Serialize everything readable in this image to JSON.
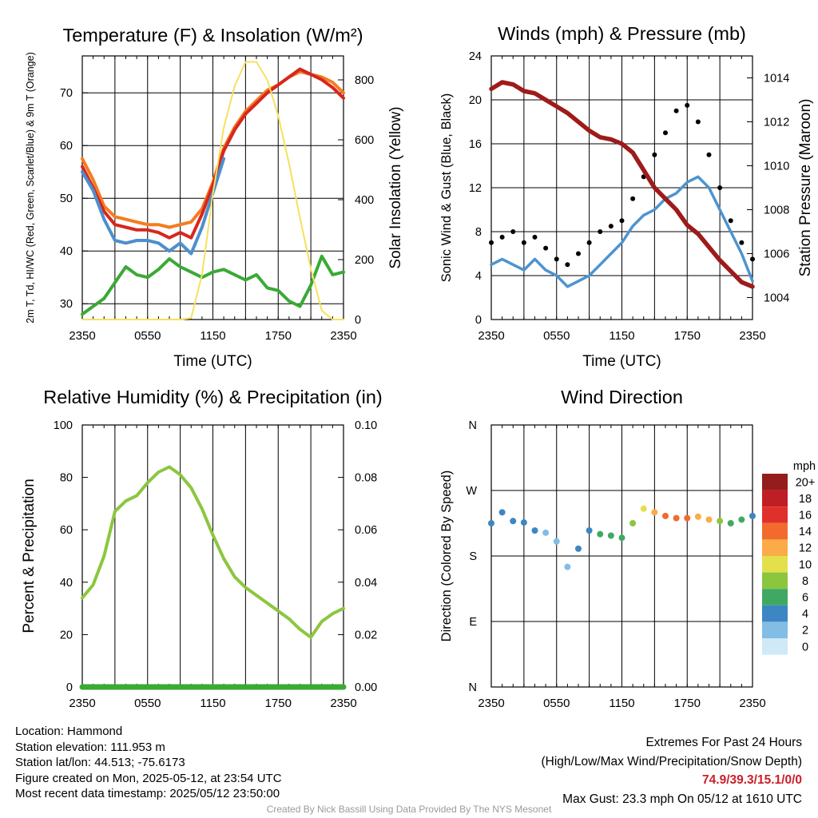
{
  "colors": {
    "temp": "#d7261e",
    "dewpoint": "#3aaa35",
    "hiwc": "#4d8fcc",
    "temp9m": "#f57c20",
    "insolation": "#f7e05e",
    "wind": "#4d94d0",
    "gust": "#000000",
    "pressure": "#9e1b1b",
    "rh": "#8cc63f",
    "precip": "#3aaa35"
  },
  "chart_data": [
    {
      "type": "line",
      "panel": "temperature",
      "title": "Temperature (F) & Insolation (W/m²)",
      "xlabel": "Time (UTC)",
      "ylabel": "2m T, Td, HI/WC (Red, Green, Scarlet/Blue) & 9m T (Orange)",
      "ylabel_right": "Solar Insolation (Yellow)",
      "x_ticks": [
        "2350",
        "0550",
        "1150",
        "1750",
        "2350"
      ],
      "y_ticks": [
        30,
        40,
        50,
        60,
        70
      ],
      "y_ticks_right": [
        0,
        200,
        400,
        600,
        800
      ],
      "ylim": [
        27,
        77
      ],
      "ylim_right": [
        0,
        880
      ],
      "x_hours": [
        0,
        1,
        2,
        3,
        4,
        5,
        6,
        7,
        8,
        9,
        10,
        11,
        12,
        13,
        14,
        15,
        16,
        17,
        18,
        19,
        20,
        21,
        22,
        23,
        24
      ],
      "series": [
        {
          "name": "9m T (Orange)",
          "axis": "left",
          "values": [
            57.5,
            53.5,
            48.5,
            46.5,
            46,
            45.5,
            45,
            45,
            44.5,
            45,
            45.5,
            48,
            53,
            59.5,
            63.5,
            66.5,
            68.5,
            70.5,
            71.5,
            73,
            74,
            73.5,
            73,
            72,
            70
          ]
        },
        {
          "name": "2m T (Red)",
          "axis": "left",
          "values": [
            56,
            52,
            47.5,
            45,
            44.5,
            44,
            44,
            43.5,
            42.5,
            43.5,
            42.5,
            47,
            52.5,
            59,
            63,
            66,
            68,
            70,
            71.5,
            73,
            74.5,
            73.5,
            72.5,
            71,
            69
          ]
        },
        {
          "name": "HI/WC (Blue)",
          "axis": "left",
          "values": [
            55,
            51.5,
            46,
            42,
            41.5,
            42,
            42,
            41.5,
            40,
            41.5,
            39.5,
            44.5,
            51,
            57.5
          ]
        },
        {
          "name": "2m Td (Green)",
          "axis": "left",
          "values": [
            28,
            29.5,
            31,
            34,
            37,
            35.5,
            35,
            36.5,
            38.5,
            37,
            36,
            35,
            36,
            36.5,
            35.5,
            34.5,
            35.5,
            33,
            32.5,
            30.5,
            29.5,
            33.5,
            39,
            35.5,
            36
          ]
        },
        {
          "name": "Solar Insolation (Yellow)",
          "axis": "right",
          "values": [
            0,
            0,
            0,
            0,
            0,
            0,
            0,
            0,
            0,
            0,
            5,
            150,
            420,
            640,
            780,
            860,
            860,
            800,
            680,
            520,
            340,
            170,
            30,
            0,
            0
          ]
        }
      ]
    },
    {
      "type": "line",
      "panel": "winds",
      "title": "Winds (mph) & Pressure (mb)",
      "xlabel": "Time (UTC)",
      "ylabel": "Sonic Wind & Gust (Blue, Black)",
      "ylabel_right": "Station Pressure (Maroon)",
      "x_ticks": [
        "2350",
        "0550",
        "1150",
        "1750",
        "2350"
      ],
      "y_ticks": [
        0,
        4,
        8,
        12,
        16,
        20,
        24
      ],
      "y_ticks_right": [
        1004,
        1006,
        1008,
        1010,
        1012,
        1014
      ],
      "ylim": [
        0,
        24
      ],
      "ylim_right": [
        1003,
        1015
      ],
      "x_hours": [
        0,
        1,
        2,
        3,
        4,
        5,
        6,
        7,
        8,
        9,
        10,
        11,
        12,
        13,
        14,
        15,
        16,
        17,
        18,
        19,
        20,
        21,
        22,
        23,
        24
      ],
      "series": [
        {
          "name": "Sonic Wind (Blue)",
          "axis": "left",
          "values": [
            5,
            5.5,
            5,
            4.5,
            5.5,
            4.5,
            4,
            3,
            3.5,
            4,
            5,
            6,
            7,
            8.5,
            9.5,
            10,
            11,
            11.5,
            12.5,
            13,
            12,
            10,
            8,
            6,
            3.5
          ]
        },
        {
          "name": "Gust (Black)",
          "axis": "left",
          "values": [
            7,
            7.5,
            8,
            7,
            7.5,
            6.5,
            5.5,
            5,
            6,
            7,
            8,
            8.5,
            9,
            11,
            13,
            15,
            17,
            19,
            19.5,
            18,
            15,
            12,
            9,
            7,
            5.5
          ]
        },
        {
          "name": "Station Pressure (Maroon)",
          "axis": "right",
          "values": [
            1013.5,
            1013.8,
            1013.7,
            1013.4,
            1013.3,
            1013.0,
            1012.7,
            1012.4,
            1012.0,
            1011.6,
            1011.3,
            1011.2,
            1011.0,
            1010.6,
            1009.8,
            1009.0,
            1008.5,
            1008.0,
            1007.3,
            1006.9,
            1006.3,
            1005.7,
            1005.2,
            1004.7,
            1004.5
          ]
        }
      ]
    },
    {
      "type": "line",
      "panel": "humidity",
      "title": "Relative Humidity (%) & Precipitation (in)",
      "ylabel": "Percent & Precipitation",
      "x_ticks": [
        "2350",
        "0550",
        "1150",
        "1750",
        "2350"
      ],
      "y_ticks": [
        0,
        20,
        40,
        60,
        80,
        100
      ],
      "y_ticks_right": [
        "0.00",
        "0.02",
        "0.04",
        "0.06",
        "0.08",
        "0.10"
      ],
      "ylim": [
        0,
        100
      ],
      "ylim_right": [
        0,
        0.1
      ],
      "x_hours": [
        0,
        1,
        2,
        3,
        4,
        5,
        6,
        7,
        8,
        9,
        10,
        11,
        12,
        13,
        14,
        15,
        16,
        17,
        18,
        19,
        20,
        21,
        22,
        23,
        24
      ],
      "series": [
        {
          "name": "Relative Humidity",
          "axis": "left",
          "values": [
            34,
            39,
            50,
            67,
            71,
            73,
            78,
            82,
            84,
            81,
            76,
            68,
            58,
            49,
            42,
            38,
            35,
            32,
            29,
            26,
            22,
            19,
            25,
            28,
            30
          ]
        },
        {
          "name": "Precipitation",
          "axis": "right",
          "values": [
            0,
            0,
            0,
            0,
            0,
            0,
            0,
            0,
            0,
            0,
            0,
            0,
            0,
            0,
            0,
            0,
            0,
            0,
            0,
            0,
            0,
            0,
            0,
            0,
            0
          ]
        }
      ]
    },
    {
      "type": "scatter",
      "panel": "direction",
      "title": "Wind Direction",
      "ylabel": "Direction (Colored By Speed)",
      "x_ticks": [
        "2350",
        "0550",
        "1150",
        "1750",
        "2350"
      ],
      "y_ticks": [
        "N",
        "E",
        "S",
        "W",
        "N"
      ],
      "ylim": [
        0,
        360
      ],
      "legend_title": "mph",
      "legend_labels": [
        "0",
        "2",
        "4",
        "6",
        "8",
        "10",
        "12",
        "14",
        "16",
        "18",
        "20+"
      ],
      "legend_colors": [
        "#cfe9f7",
        "#82bde6",
        "#3d86c3",
        "#3fa963",
        "#8cc63f",
        "#e3e04c",
        "#fbab48",
        "#f26b2c",
        "#e0302a",
        "#bf1e24",
        "#941c1c"
      ],
      "x_hours": [
        0,
        1,
        2,
        3,
        4,
        5,
        6,
        7,
        8,
        9,
        10,
        11,
        12,
        13,
        14,
        15,
        16,
        17,
        18,
        19,
        20,
        21,
        22,
        23,
        24
      ],
      "direction_deg": [
        225,
        240,
        228,
        226,
        215,
        212,
        200,
        165,
        190,
        215,
        210,
        208,
        205,
        225,
        245,
        240,
        235,
        232,
        232,
        234,
        230,
        228,
        225,
        230,
        235
      ],
      "speed_mph": [
        4,
        4,
        5,
        5,
        4,
        3,
        2,
        2,
        4,
        5,
        6,
        6,
        7,
        8,
        10,
        12,
        14,
        15,
        15,
        13,
        12,
        8,
        7,
        6,
        4
      ]
    }
  ],
  "info": {
    "location": "Location: Hammond",
    "elevation": "Station elevation: 111.953 m",
    "latlon": "Station lat/lon: 44.513; -75.6173",
    "created": "Figure created on Mon, 2025-05-12, at 23:54 UTC",
    "recent": "Most recent data timestamp: 2025/05/12 23:50:00"
  },
  "extremes": {
    "title": "Extremes For Past 24 Hours",
    "subtitle": "(High/Low/Max Wind/Precipitation/Snow Depth)",
    "values": "74.9/39.3/15.1/0/0",
    "max_gust": "Max Gust: 23.3 mph On 05/12 at 1610 UTC"
  },
  "credit": "Created By Nick Bassill Using Data Provided By The NYS Mesonet"
}
